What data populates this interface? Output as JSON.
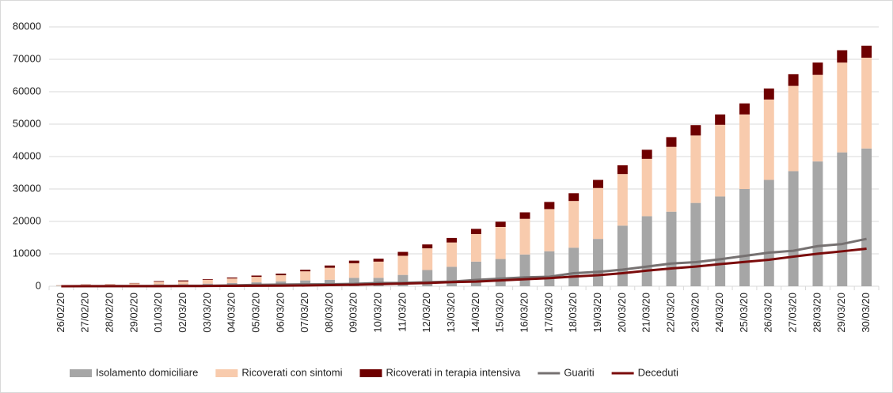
{
  "chart_data": {
    "type": "bar",
    "stacked": true,
    "categories": [
      "26/02/20",
      "27/02/20",
      "28/02/20",
      "29/02/20",
      "01/03/20",
      "02/03/20",
      "03/03/20",
      "04/03/20",
      "05/03/20",
      "06/03/20",
      "07/03/20",
      "08/03/20",
      "09/03/20",
      "10/03/20",
      "11/03/20",
      "12/03/20",
      "13/03/20",
      "14/03/20",
      "15/03/20",
      "16/03/20",
      "17/03/20",
      "18/03/20",
      "19/03/20",
      "20/03/20",
      "21/03/20",
      "22/03/20",
      "23/03/20",
      "24/03/20",
      "25/03/20",
      "26/03/20",
      "27/03/20",
      "28/03/20",
      "29/03/20",
      "30/03/20"
    ],
    "series": [
      {
        "name": "Isolamento domiciliare",
        "type": "bar",
        "color": "#a6a6a6",
        "values": [
          150,
          250,
          300,
          400,
          600,
          600,
          800,
          1000,
          1200,
          1500,
          1800,
          2000,
          2600,
          2600,
          3500,
          5000,
          6000,
          7600,
          8400,
          9800,
          10800,
          11900,
          14600,
          18700,
          21600,
          23000,
          25700,
          27700,
          30000,
          32800,
          35500,
          38500,
          41300,
          42500
        ]
      },
      {
        "name": "Ricoverati con sintomi",
        "type": "bar",
        "color": "#f8cbad",
        "values": [
          150,
          300,
          300,
          500,
          800,
          900,
          1200,
          1400,
          1700,
          1900,
          2800,
          3700,
          4500,
          5000,
          5900,
          6700,
          7500,
          8500,
          9900,
          11000,
          13000,
          14400,
          15700,
          15900,
          17700,
          20000,
          20800,
          22100,
          23000,
          24800,
          26300,
          26700,
          27700,
          28000
        ]
      },
      {
        "name": "Ricoverati in terapia intensiva",
        "type": "bar",
        "color": "#6e0000",
        "values": [
          20,
          50,
          50,
          100,
          200,
          300,
          200,
          300,
          400,
          500,
          500,
          700,
          800,
          900,
          1200,
          1200,
          1400,
          1600,
          1600,
          2000,
          2200,
          2400,
          2500,
          2700,
          2800,
          3000,
          3200,
          3200,
          3400,
          3400,
          3600,
          3800,
          3800,
          3700
        ]
      },
      {
        "name": "Guariti",
        "type": "line",
        "color": "#767171",
        "values": [
          3,
          45,
          46,
          50,
          83,
          149,
          160,
          276,
          414,
          523,
          589,
          622,
          724,
          1004,
          1045,
          1258,
          1439,
          1966,
          2335,
          2749,
          2941,
          4025,
          4440,
          5129,
          6072,
          7024,
          7432,
          8326,
          9362,
          10361,
          10950,
          12384,
          13030,
          14620
        ]
      },
      {
        "name": "Deceduti",
        "type": "line",
        "color": "#7b0c0c",
        "values": [
          12,
          17,
          21,
          29,
          34,
          52,
          79,
          107,
          148,
          197,
          233,
          366,
          463,
          631,
          827,
          1016,
          1266,
          1441,
          1809,
          2158,
          2503,
          2978,
          3405,
          4032,
          4825,
          5476,
          6077,
          6820,
          7503,
          8165,
          9134,
          10023,
          10779,
          11591
        ]
      }
    ],
    "ylim": [
      0,
      80000
    ],
    "yticks": [
      0,
      10000,
      20000,
      30000,
      40000,
      50000,
      60000,
      70000,
      80000
    ],
    "grid": true,
    "legend": "bottom"
  }
}
